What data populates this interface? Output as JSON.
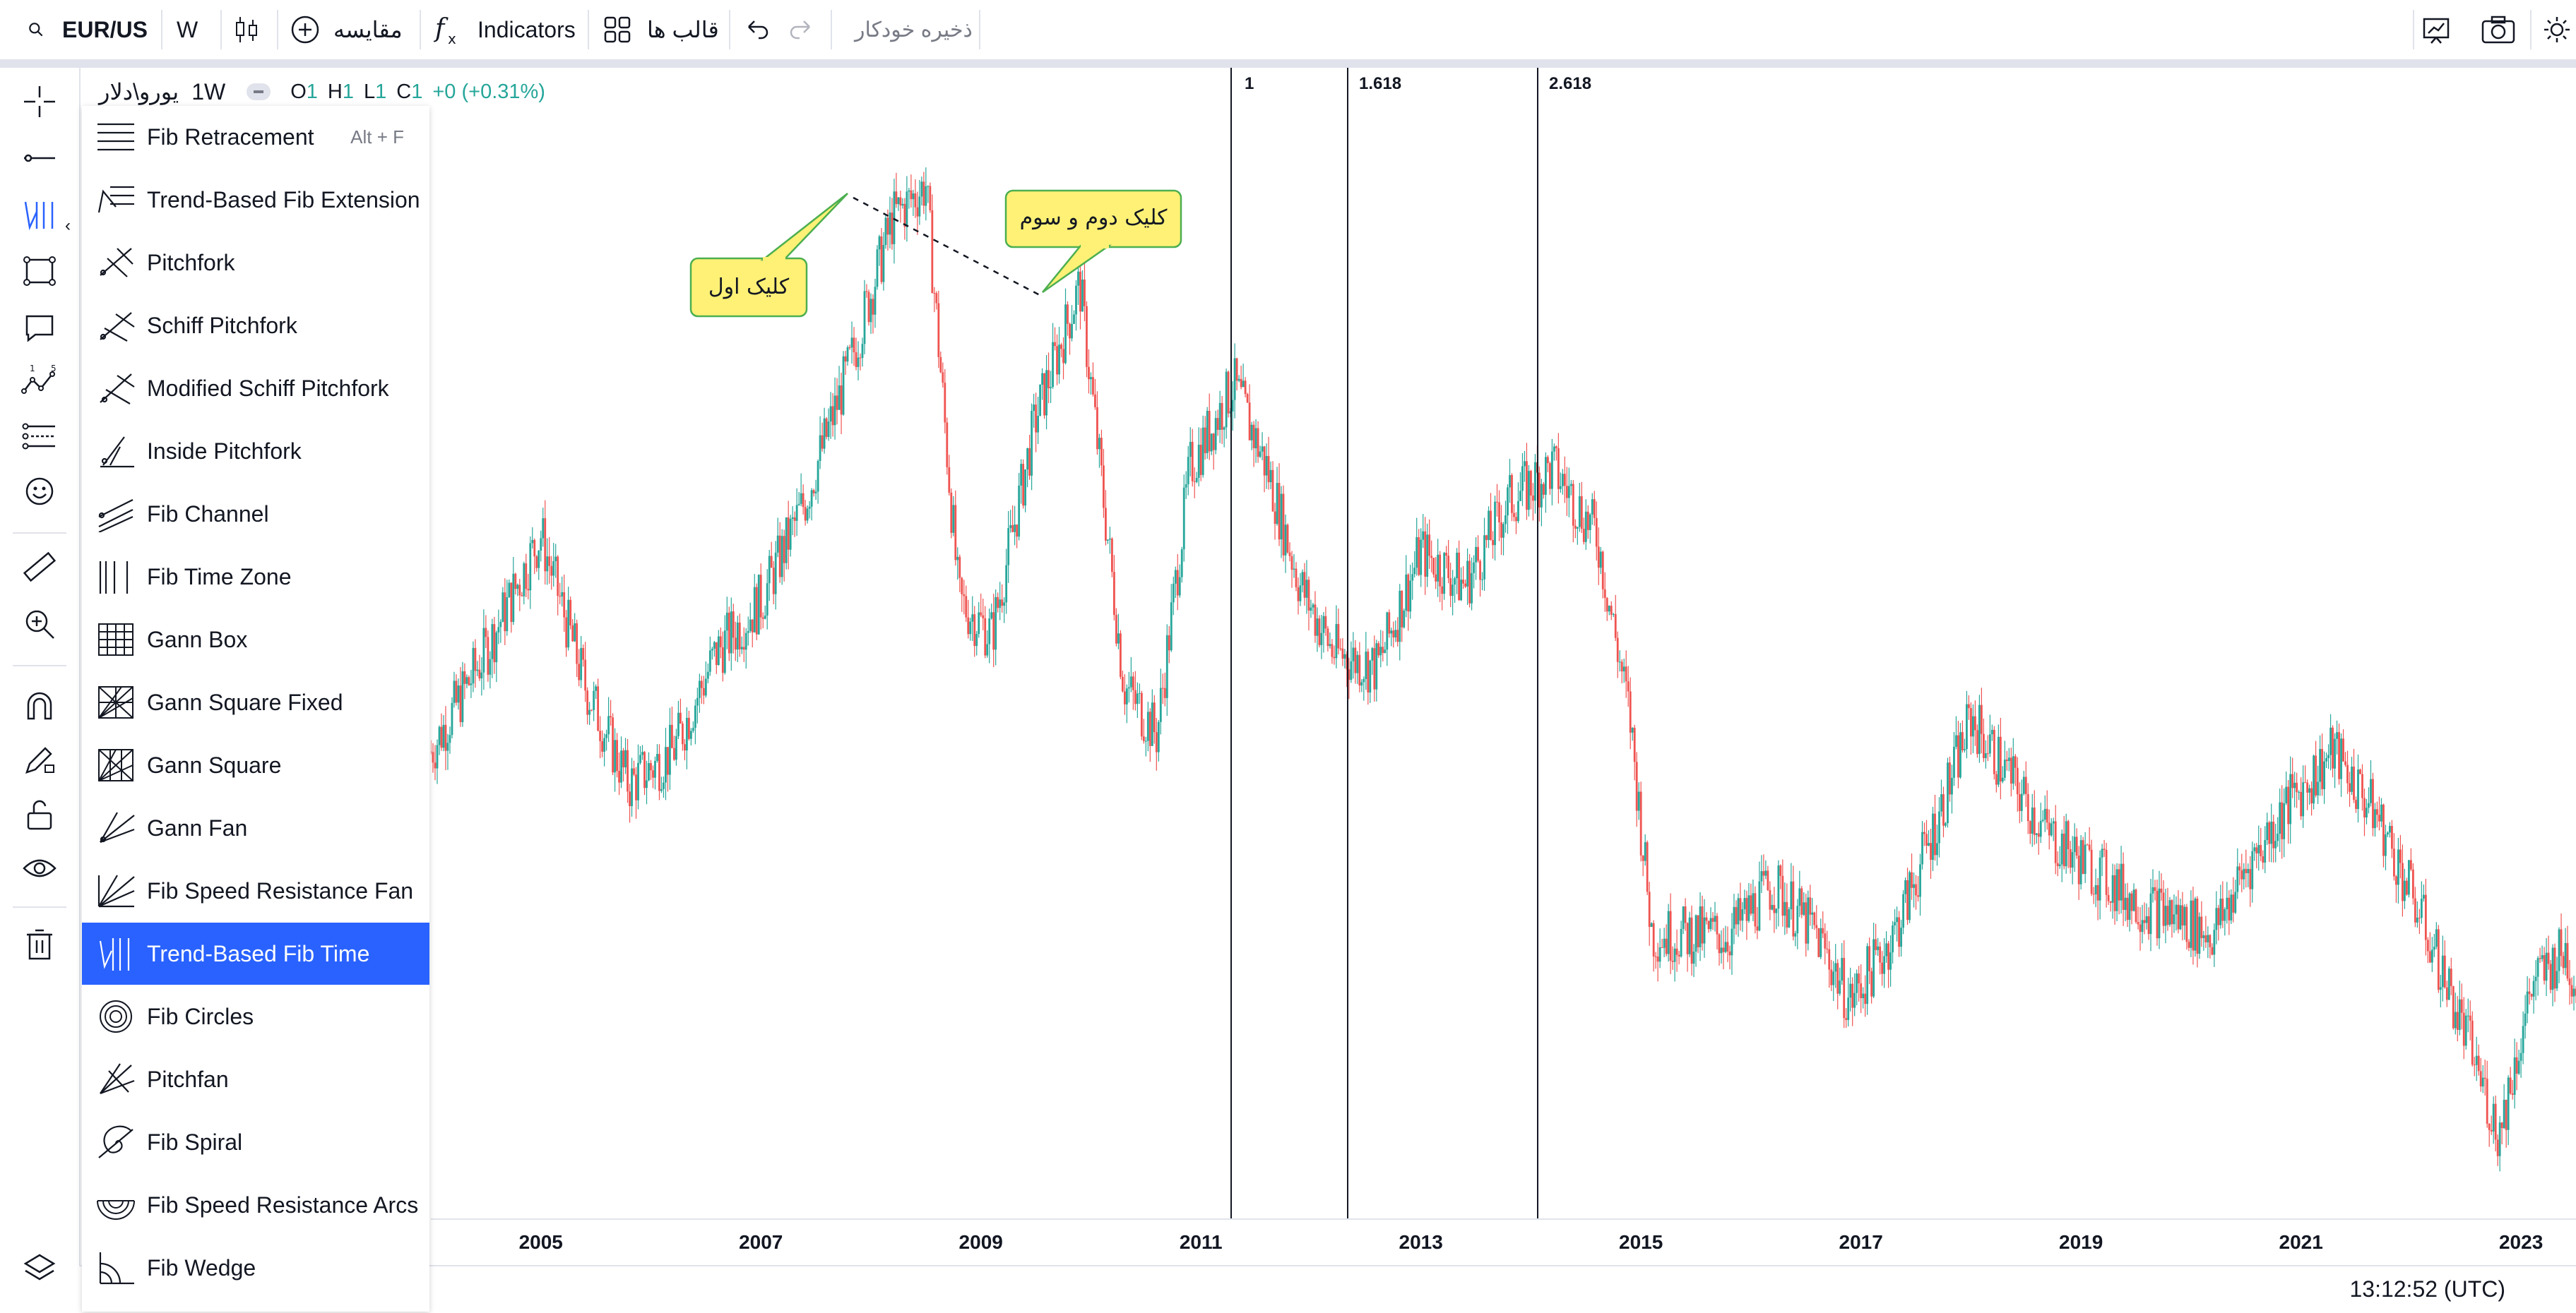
{
  "toolbar": {
    "symbol": "EUR/US",
    "interval": "W",
    "compare_label": "مقایسه",
    "indicators_label": "Indicators",
    "templates_label": "قالب ها",
    "autosave_label": "ذخیره خودکار"
  },
  "legend": {
    "symbol_name": "یورو\\دلار",
    "interval": "1W",
    "open_label": "O",
    "open_value": "1",
    "high_label": "H",
    "high_value": "1",
    "low_label": "L",
    "low_value": "1",
    "close_label": "C",
    "close_value": "1",
    "change": "+0 (+0.31%)"
  },
  "fib_menu": {
    "items": [
      {
        "label": "Fib Retracement",
        "icon": "fib-retracement-icon",
        "shortcut": "Alt + F"
      },
      {
        "label": "Trend-Based Fib Extension",
        "icon": "trend-fib-extension-icon",
        "shortcut": ""
      },
      {
        "label": "Pitchfork",
        "icon": "pitchfork-icon",
        "shortcut": ""
      },
      {
        "label": "Schiff Pitchfork",
        "icon": "schiff-pitchfork-icon",
        "shortcut": ""
      },
      {
        "label": "Modified Schiff Pitchfork",
        "icon": "modified-schiff-pitchfork-icon",
        "shortcut": ""
      },
      {
        "label": "Inside Pitchfork",
        "icon": "inside-pitchfork-icon",
        "shortcut": ""
      },
      {
        "label": "Fib Channel",
        "icon": "fib-channel-icon",
        "shortcut": ""
      },
      {
        "label": "Fib Time Zone",
        "icon": "fib-time-zone-icon",
        "shortcut": ""
      },
      {
        "label": "Gann Box",
        "icon": "gann-box-icon",
        "shortcut": ""
      },
      {
        "label": "Gann Square Fixed",
        "icon": "gann-square-fixed-icon",
        "shortcut": ""
      },
      {
        "label": "Gann Square",
        "icon": "gann-square-icon",
        "shortcut": ""
      },
      {
        "label": "Gann Fan",
        "icon": "gann-fan-icon",
        "shortcut": ""
      },
      {
        "label": "Fib Speed Resistance Fan",
        "icon": "fib-speed-resistance-fan-icon",
        "shortcut": ""
      },
      {
        "label": "Trend-Based Fib Time",
        "icon": "trend-fib-time-icon",
        "shortcut": "",
        "active": true
      },
      {
        "label": "Fib Circles",
        "icon": "fib-circles-icon",
        "shortcut": ""
      },
      {
        "label": "Pitchfan",
        "icon": "pitchfan-icon",
        "shortcut": ""
      },
      {
        "label": "Fib Spiral",
        "icon": "fib-spiral-icon",
        "shortcut": ""
      },
      {
        "label": "Fib Speed Resistance Arcs",
        "icon": "fib-speed-resistance-arcs-icon",
        "shortcut": ""
      },
      {
        "label": "Fib Wedge",
        "icon": "fib-wedge-icon",
        "shortcut": ""
      }
    ]
  },
  "fib_time_levels": [
    "1",
    "1.618",
    "2.618"
  ],
  "callouts": {
    "first_click": "کلیک اول",
    "second_third_click": "کلیک دوم و سوم"
  },
  "time_axis": {
    "labels": [
      "2005",
      "2007",
      "2009",
      "2011",
      "2013",
      "2015",
      "2017",
      "2019",
      "2021",
      "2023"
    ]
  },
  "status": {
    "clock": "13:12:52 (UTC)"
  },
  "colors": {
    "accent": "#2962ff",
    "up": "#26a69a",
    "down": "#ef5350",
    "callout": "#fff176"
  },
  "chart_data": {
    "type": "line",
    "x": [
      2004.0,
      2004.5,
      2005.0,
      2005.4,
      2005.8,
      2006.2,
      2006.6,
      2007.0,
      2007.4,
      2007.8,
      2008.2,
      2008.5,
      2008.8,
      2009.1,
      2009.5,
      2009.9,
      2010.3,
      2010.6,
      2010.9,
      2011.3,
      2011.6,
      2011.9,
      2012.2,
      2012.6,
      2013.0,
      2013.4,
      2013.8,
      2014.2,
      2014.6,
      2014.9,
      2015.1,
      2015.4,
      2015.8,
      2016.2,
      2016.6,
      2016.9,
      2017.3,
      2017.7,
      2018.0,
      2018.3,
      2018.7,
      2019.1,
      2019.5,
      2019.9,
      2020.2,
      2020.5,
      2020.9,
      2021.3,
      2021.7,
      2022.1,
      2022.5,
      2022.8,
      2023.1,
      2023.4,
      2023.5
    ],
    "values": [
      1.21,
      1.27,
      1.34,
      1.25,
      1.19,
      1.21,
      1.27,
      1.3,
      1.36,
      1.44,
      1.53,
      1.55,
      1.3,
      1.28,
      1.41,
      1.49,
      1.25,
      1.22,
      1.38,
      1.43,
      1.38,
      1.31,
      1.27,
      1.26,
      1.33,
      1.31,
      1.36,
      1.38,
      1.34,
      1.23,
      1.1,
      1.1,
      1.1,
      1.13,
      1.1,
      1.06,
      1.1,
      1.17,
      1.23,
      1.2,
      1.16,
      1.14,
      1.12,
      1.11,
      1.1,
      1.14,
      1.18,
      1.21,
      1.17,
      1.11,
      1.04,
      0.98,
      1.07,
      1.09,
      1.07
    ],
    "xlim": [
      2004.0,
      2023.5
    ],
    "xlabel": "",
    "ylabel": "",
    "grid": false,
    "tick_labels": [
      "2005",
      "2007",
      "2009",
      "2011",
      "2013",
      "2015",
      "2017",
      "2019",
      "2021",
      "2023"
    ]
  }
}
